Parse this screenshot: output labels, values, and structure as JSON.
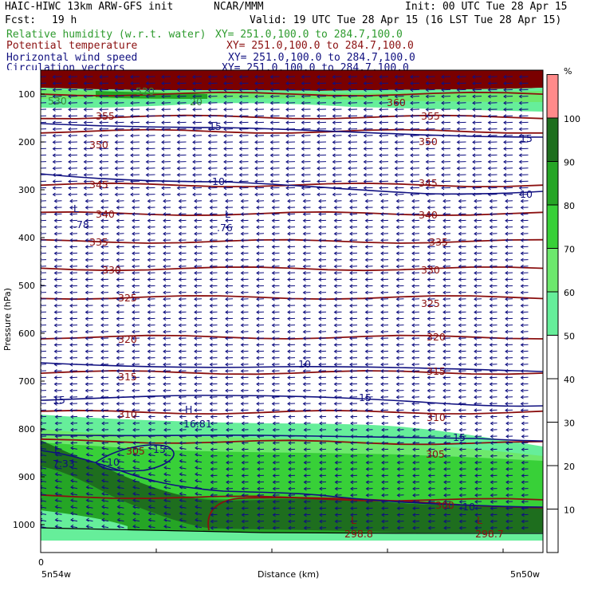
{
  "header": {
    "title": "HAIC-HIWC 13km ARW-GFS init",
    "org": "NCAR/MMM",
    "init": "Init: 00 UTC Tue 28 Apr 15",
    "fcst_label": "Fcst:",
    "fcst_value": "19 h",
    "valid": "Valid: 19 UTC Tue 28 Apr 15 (16 LST Tue 28 Apr 15)"
  },
  "fields": [
    {
      "name": "Relative humidity (w.r.t. water)",
      "xy": "XY= 251.0,100.0 to 284.7,100.0",
      "color": "#2e9b2e"
    },
    {
      "name": "Potential temperature",
      "xy": "XY= 251.0,100.0 to 284.7,100.0",
      "color": "#8b1010"
    },
    {
      "name": "Horizontal wind speed",
      "xy": "XY= 251.0,100.0 to 284.7,100.0",
      "color": "#101080"
    },
    {
      "name": "Circulation vectors",
      "xy": "XY= 251.0,100.0 to 284.7,100.0",
      "color": "#101080"
    }
  ],
  "axes": {
    "ylabel": "Pressure (hPa)",
    "xlabel": "Distance (km)",
    "x_tick_origin": "0",
    "x_left_label": "5n54w",
    "x_right_label": "5n50w"
  },
  "colorbar": {
    "unit": "%",
    "levels": [
      10,
      20,
      30,
      40,
      50,
      60,
      70,
      80,
      90,
      100
    ],
    "bins": [
      {
        "from": 100,
        "to": 110,
        "color": "#ff8a8a"
      },
      {
        "from": 90,
        "to": 100,
        "color": "#1e6e1e"
      },
      {
        "from": 80,
        "to": 90,
        "color": "#25a525"
      },
      {
        "from": 70,
        "to": 80,
        "color": "#38d038"
      },
      {
        "from": 60,
        "to": 70,
        "color": "#6de86d"
      },
      {
        "from": 50,
        "to": 60,
        "color": "#66ee9a"
      }
    ]
  },
  "chart_data": {
    "type": "heatmap",
    "y_axis": {
      "label": "Pressure (hPa)",
      "ticks": [
        100,
        200,
        300,
        400,
        500,
        600,
        700,
        800,
        900,
        1000
      ],
      "reversed": true
    },
    "theta_contours": [
      {
        "value": 360,
        "label": "360",
        "p": [
          100,
          100
        ]
      },
      {
        "value": 355,
        "label": "355",
        "p": [
          148,
          148
        ]
      },
      {
        "value": 350,
        "label": "350",
        "p": [
          178,
          178
        ]
      },
      {
        "value": 345,
        "label": "345",
        "p": [
          290,
          290
        ]
      },
      {
        "value": 340,
        "label": "340",
        "p": [
          350,
          350
        ]
      },
      {
        "value": 335,
        "label": "335",
        "p": [
          408,
          408
        ]
      },
      {
        "value": 330,
        "label": "330",
        "p": [
          465,
          465
        ]
      },
      {
        "value": 325,
        "label": "325",
        "p": [
          525,
          525
        ]
      },
      {
        "value": 320,
        "label": "320",
        "p": [
          608,
          608
        ]
      },
      {
        "value": 315,
        "label": "315",
        "p": [
          682,
          682
        ]
      },
      {
        "value": 310,
        "label": "310",
        "p": [
          765,
          765
        ]
      },
      {
        "value": 305,
        "label": "305",
        "p": [
          825,
          830
        ]
      },
      {
        "value": 300,
        "label": "300",
        "p": [
          940,
          950
        ]
      }
    ],
    "wind_contours": [
      {
        "value": 15,
        "label": "15"
      },
      {
        "value": 10,
        "label": "10"
      }
    ],
    "extrema": [
      {
        "kind": "L",
        "value": ".78",
        "field": "wind"
      },
      {
        "kind": "L",
        "value": ".76",
        "field": "wind"
      },
      {
        "kind": "H",
        "value": "16.81",
        "field": "wind"
      },
      {
        "kind": "L",
        "value": "7.33",
        "field": "wind"
      },
      {
        "kind": "L",
        "value": "298.8",
        "field": "theta"
      },
      {
        "kind": "L",
        "value": "298.7",
        "field": "theta"
      }
    ],
    "top_labels": [
      "520",
      "530",
      "20",
      "360",
      "355",
      "350",
      "345",
      "340",
      "335",
      "330",
      "325",
      "320",
      "315",
      "310",
      "305",
      "300",
      "10",
      "15"
    ]
  }
}
